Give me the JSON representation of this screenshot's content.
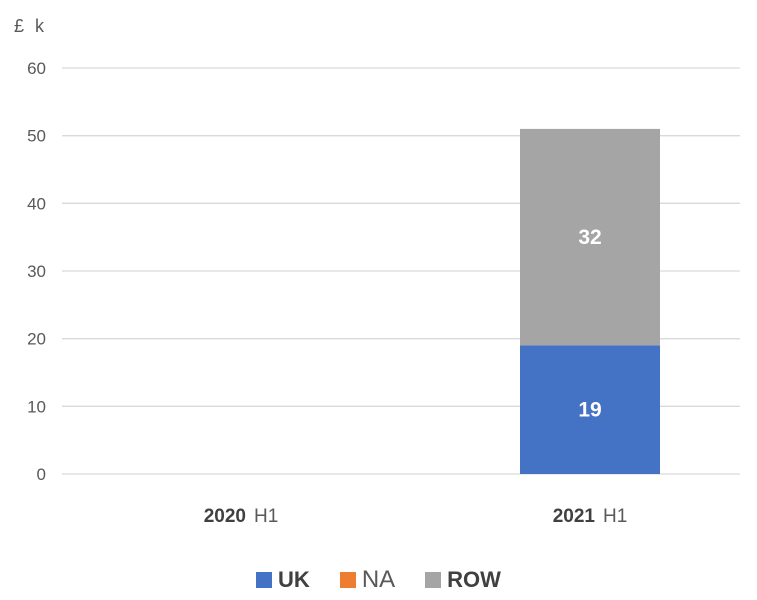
{
  "chart_data": {
    "type": "bar",
    "stacked": true,
    "unit_label": "£ k",
    "categories": [
      {
        "year": "2020",
        "half": "H1"
      },
      {
        "year": "2021",
        "half": "H1"
      }
    ],
    "series": [
      {
        "name": "UK",
        "color": "#4472c4",
        "values": [
          0,
          19
        ],
        "labels": [
          "",
          "19"
        ]
      },
      {
        "name": "NA",
        "color": "#ed7d31",
        "values": [
          0,
          0
        ],
        "labels": [
          "",
          ""
        ]
      },
      {
        "name": "ROW",
        "color": "#a5a5a5",
        "values": [
          0,
          32
        ],
        "labels": [
          "",
          "32"
        ]
      }
    ],
    "ylim": [
      0,
      60
    ],
    "yticks": [
      0,
      10,
      20,
      30,
      40,
      50,
      60
    ],
    "grid": true,
    "legend_position": "bottom"
  }
}
